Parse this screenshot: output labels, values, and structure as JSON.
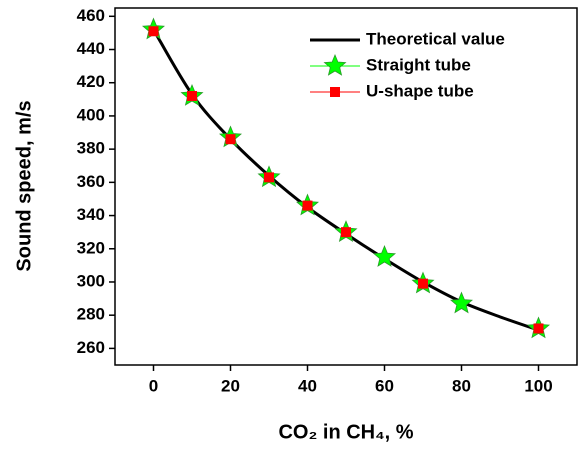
{
  "chart_data": {
    "type": "line",
    "x_label": "CO₂ in CH₄, %",
    "y_label": "Sound speed, m/s",
    "xlim": [
      -10,
      110
    ],
    "ylim": [
      250,
      465
    ],
    "xticks": [
      0,
      20,
      40,
      60,
      80,
      100
    ],
    "yticks": [
      260,
      280,
      300,
      320,
      340,
      360,
      380,
      400,
      420,
      440,
      460
    ],
    "legend": "upper right",
    "series": [
      {
        "name": "Theoretical value",
        "color": "#000000",
        "marker": "none",
        "x": [
          0,
          10,
          20,
          30,
          40,
          50,
          60,
          70,
          80,
          90,
          100
        ],
        "values": [
          452,
          413,
          386,
          364,
          345,
          329,
          314,
          300,
          288,
          279,
          271
        ]
      },
      {
        "name": "Straight tube",
        "color": "#00ff00",
        "marker": "star",
        "x": [
          0,
          10,
          20,
          30,
          40,
          50,
          60,
          70,
          80,
          100
        ],
        "values": [
          452,
          412,
          387,
          363,
          346,
          330,
          315,
          299,
          287,
          272
        ]
      },
      {
        "name": "U-shape tube",
        "color": "#ff0000",
        "marker": "square",
        "x": [
          0,
          10,
          20,
          30,
          40,
          50,
          70,
          100
        ],
        "values": [
          451,
          412,
          386,
          363,
          346,
          330,
          299,
          272
        ]
      }
    ]
  }
}
